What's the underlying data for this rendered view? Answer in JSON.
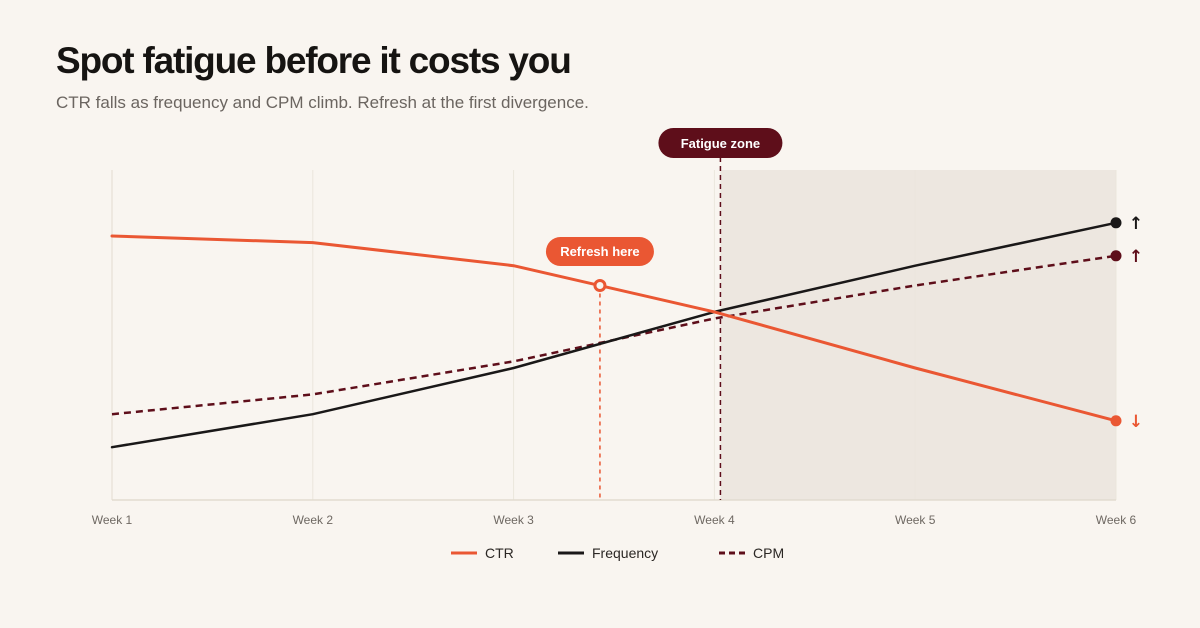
{
  "title": "Spot fatigue before it costs you",
  "subtitle": "CTR falls as frequency and CPM climb. Refresh at the first divergence.",
  "colors": {
    "ctr": "#ea5733",
    "frequency": "#1a1818",
    "cpm": "#5e0e1a",
    "fatigue_pill": "#5e0e1a",
    "refresh_pill": "#ea5733",
    "fatigue_shade": "#ede7e0",
    "background": "#f9f5f0"
  },
  "chart_data": {
    "type": "line",
    "title": "",
    "xlabel": "",
    "ylabel": "",
    "categories": [
      "Week 1",
      "Week 2",
      "Week 3",
      "Week 4",
      "Week 5",
      "Week 6"
    ],
    "y_axis": "unlabeled, relative index",
    "ylim": [
      0,
      100
    ],
    "grid": "vertical lines at each week",
    "legend_position": "bottom-center",
    "series": [
      {
        "name": "CTR",
        "key": "ctr",
        "style": "solid",
        "values": [
          80,
          78,
          71,
          57,
          40,
          24
        ],
        "end_arrow": "↓"
      },
      {
        "name": "Frequency",
        "key": "frequency",
        "style": "solid",
        "values": [
          16,
          26,
          40,
          57,
          71,
          84
        ],
        "end_arrow": "↑"
      },
      {
        "name": "CPM",
        "key": "cpm",
        "style": "dashed",
        "values": [
          26,
          32,
          42,
          55,
          65,
          74
        ],
        "end_arrow": "↑"
      }
    ],
    "annotations": {
      "refresh": {
        "label": "Refresh here",
        "x": 3.43,
        "y": 65
      },
      "fatigue": {
        "label": "Fatigue zone",
        "x": 4.03,
        "shade_to": 6
      }
    }
  }
}
